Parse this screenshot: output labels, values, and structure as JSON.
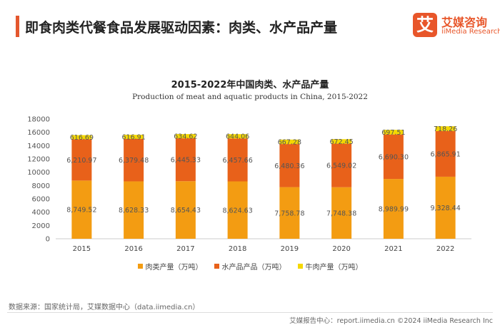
{
  "header": {
    "title": "即食肉类代餐食品发展驱动因素：肉类、水产品产量"
  },
  "logo": {
    "mark": "艾",
    "name_cn": "艾媒咨询",
    "name_en": "iiMedia Research"
  },
  "chart_data": {
    "type": "bar",
    "stacked": true,
    "title": "2015-2022年中国肉类、水产品产量",
    "subtitle": "Production of meat and aquatic products in China, 2015-2022",
    "categories": [
      "2015",
      "2016",
      "2017",
      "2018",
      "2019",
      "2020",
      "2021",
      "2022"
    ],
    "series": [
      {
        "name": "肉类产量（万吨）",
        "color": "#f39c12",
        "values": [
          8749.52,
          8628.33,
          8654.43,
          8624.63,
          7758.78,
          7748.38,
          8989.99,
          9328.44
        ],
        "labels": [
          "8,749.52",
          "8,628.33",
          "8,654.43",
          "8,624.63",
          "7,758.78",
          "7,748.38",
          "8,989.99",
          "9,328.44"
        ]
      },
      {
        "name": "水产品产品（万吨）",
        "color": "#e8611a",
        "values": [
          6210.97,
          6379.48,
          6445.33,
          6457.66,
          6480.36,
          6549.02,
          6690.3,
          6865.91
        ],
        "labels": [
          "6,210.97",
          "6,379.48",
          "6,445.33",
          "6,457.66",
          "6,480.36",
          "6,549.02",
          "6,690.30",
          "6,865.91"
        ]
      },
      {
        "name": "牛肉产量（万吨）",
        "color": "#f5d800",
        "values": [
          616.69,
          616.91,
          634.62,
          644.06,
          667.28,
          672.45,
          697.51,
          718.26
        ],
        "labels": [
          "616.69",
          "616.91",
          "634.62",
          "644.06",
          "667.28",
          "672.45",
          "697.51",
          "718.26"
        ]
      }
    ],
    "ylim": [
      0,
      18000
    ],
    "yticks": [
      0,
      2000,
      4000,
      6000,
      8000,
      10000,
      12000,
      14000,
      16000,
      18000
    ],
    "xlabel": "",
    "ylabel": "",
    "grid": false,
    "legend_position": "bottom"
  },
  "footer": {
    "source": "数据来源：国家统计局，艾媒数据中心（data.iimedia.cn）",
    "copyright": "艾媒报告中心：report.iimedia.cn    ©2024  iiMedia Research  Inc"
  }
}
